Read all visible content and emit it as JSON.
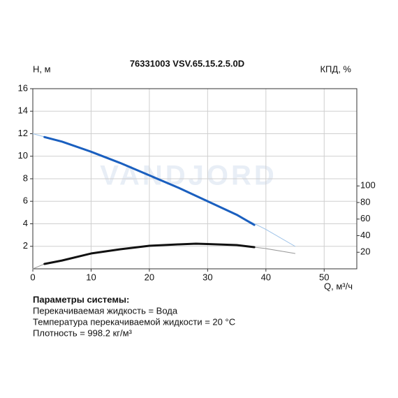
{
  "chart_data": {
    "type": "line",
    "title": "76331003 VSV.65.15.2.5.0D",
    "ylabel": "H, м",
    "y2label": "КПД, %",
    "xlabel": "Q, м³/ч",
    "watermark": "VANDJORD",
    "xlim": [
      0,
      55.6
    ],
    "xticks": [
      0,
      10,
      20,
      30,
      40,
      50
    ],
    "ylim": [
      0,
      16
    ],
    "yticks": [
      2,
      4,
      6,
      8,
      10,
      12,
      14,
      16
    ],
    "y2lim": [
      0,
      217.3
    ],
    "y2ticks": [
      20,
      40,
      60,
      80,
      100
    ],
    "grid": true,
    "series": [
      {
        "color": "#9cc2e8",
        "width": 1,
        "x": [
          0,
          5,
          10,
          15,
          20,
          25,
          30,
          35,
          40,
          45
        ],
        "values": [
          12.0,
          11.3,
          10.4,
          9.4,
          8.3,
          7.2,
          6.0,
          4.8,
          3.5,
          2.0
        ]
      },
      {
        "color": "#1a5fbf",
        "width": 3,
        "x": [
          2,
          5,
          10,
          15,
          20,
          25,
          30,
          35,
          38
        ],
        "values": [
          11.7,
          11.3,
          10.4,
          9.4,
          8.3,
          7.2,
          6.0,
          4.8,
          3.9
        ]
      },
      {
        "color": "#999999",
        "width": 1,
        "axis": "y2",
        "x": [
          0,
          2,
          5,
          10,
          15,
          20,
          25,
          28,
          30,
          35,
          38,
          40,
          45
        ],
        "values": [
          0,
          5.9,
          10,
          18.5,
          23.6,
          27.8,
          29.5,
          30.3,
          29.9,
          28.6,
          26.1,
          24.4,
          18.5
        ]
      },
      {
        "color": "#111111",
        "width": 3,
        "axis": "y2",
        "x": [
          2,
          5,
          10,
          15,
          20,
          25,
          28,
          30,
          35,
          38
        ],
        "values": [
          5.9,
          10,
          18.5,
          23.6,
          27.8,
          29.5,
          30.3,
          29.9,
          28.6,
          26.1
        ]
      }
    ]
  },
  "params": {
    "title": "Параметры системы:",
    "lines": [
      "Перекачиваемая жидкость = Вода",
      "Температура перекачиваемой жидкости = 20 °C",
      "Плотность = 998.2 кг/м³"
    ]
  }
}
